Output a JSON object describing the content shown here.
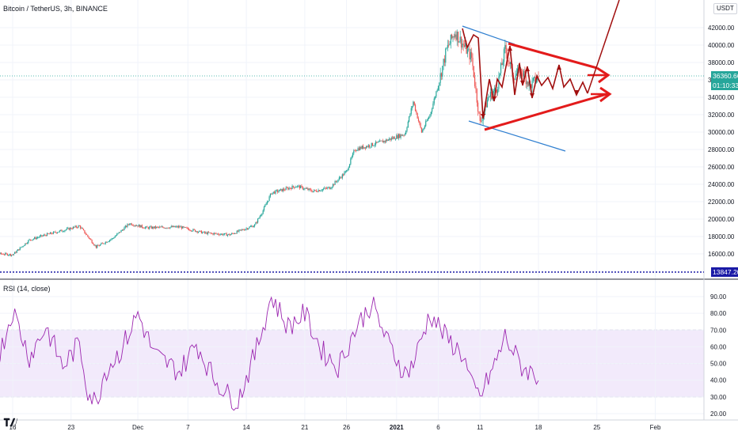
{
  "symbol_title": "Bitcoin / TetherUS, 3h, BINANCE",
  "currency": "USDT",
  "last_price": "36360.66",
  "countdown": "01:10:33",
  "hline_price": "13847.20",
  "rsi_title": "RSI (14, close)",
  "price_axis_labels": [
    "42000.00",
    "40000.00",
    "38000.00",
    "36000.00",
    "34000.00",
    "32000.00",
    "30000.00",
    "28000.00",
    "26000.00",
    "24000.00",
    "22000.00",
    "20000.00",
    "18000.00",
    "16000.00"
  ],
  "price_axis_top": "4",
  "rsi_axis_labels": [
    "90.00",
    "80.00",
    "70.00",
    "60.00",
    "50.00",
    "40.00",
    "30.00",
    "20.00"
  ],
  "time_axis_labels": [
    "16",
    "23",
    "Dec",
    "7",
    "14",
    "21",
    "26",
    "2021",
    "6",
    "11",
    "18",
    "25",
    "Feb"
  ],
  "colors": {
    "up": "#26a69a",
    "down": "#ef5350",
    "rsi_line": "#9c27b0",
    "rsi_band": "#e8d9f7",
    "drawing_red": "#e31b1b",
    "drawing_darkred": "#a10f0f",
    "trendline_blue": "#2f7fd0",
    "hline": "#1a1aa6"
  },
  "chart_data": {
    "type": "candlestick",
    "title": "Bitcoin / TetherUS, 3h, BINANCE",
    "ylim": [
      15000,
      43600
    ],
    "y_ticks": [
      16000,
      18000,
      20000,
      22000,
      24000,
      26000,
      28000,
      30000,
      32000,
      34000,
      36000,
      38000,
      40000,
      42000
    ],
    "x_ticks": [
      "16",
      "23",
      "Dec",
      "7",
      "14",
      "21",
      "26",
      "2021",
      "6",
      "11",
      "18",
      "25",
      "Feb"
    ],
    "price_path": [
      [
        "Nov 12",
        16200
      ],
      [
        "Nov 16",
        15900
      ],
      [
        "Nov 18",
        17600
      ],
      [
        "Nov 20",
        18200
      ],
      [
        "Nov 24",
        19200
      ],
      [
        "Nov 26",
        16800
      ],
      [
        "Nov 28",
        17800
      ],
      [
        "Nov 30",
        19500
      ],
      [
        "Dec 2",
        19000
      ],
      [
        "Dec 6",
        19100
      ],
      [
        "Dec 9",
        18400
      ],
      [
        "Dec 12",
        18200
      ],
      [
        "Dec 15",
        19300
      ],
      [
        "Dec 16",
        21000
      ],
      [
        "Dec 17",
        23000
      ],
      [
        "Dec 20",
        23800
      ],
      [
        "Dec 22",
        23200
      ],
      [
        "Dec 24",
        23600
      ],
      [
        "Dec 26",
        25500
      ],
      [
        "Dec 27",
        28000
      ],
      [
        "Dec 30",
        28800
      ],
      [
        "Jan 2",
        29800
      ],
      [
        "Jan 3",
        33500
      ],
      [
        "Jan 4",
        30000
      ],
      [
        "Jan 5",
        32000
      ],
      [
        "Jan 6",
        35500
      ],
      [
        "Jan 7",
        39500
      ],
      [
        "Jan 8",
        41500
      ],
      [
        "Jan 9",
        40000
      ],
      [
        "Jan 10",
        38500
      ],
      [
        "Jan 11",
        31000
      ],
      [
        "Jan 12",
        34000
      ],
      [
        "Jan 13",
        35000
      ],
      [
        "Jan 14",
        39500
      ],
      [
        "Jan 15",
        36500
      ],
      [
        "Jan 16",
        37000
      ],
      [
        "Jan 17",
        35300
      ],
      [
        "Jan 18",
        36360.66
      ]
    ],
    "last_price": 36360.66,
    "horizontal_line": 13847.2,
    "indicator": {
      "name": "RSI (14, close)",
      "ylim": [
        15,
        95
      ],
      "bands": [
        30,
        70
      ],
      "y_ticks": [
        20,
        30,
        40,
        50,
        60,
        70,
        80,
        90
      ]
    },
    "drawings": [
      {
        "type": "symmetrical-triangle",
        "description": "converging red lines with wave arrows"
      },
      {
        "type": "trendline",
        "count": 2
      },
      {
        "type": "breakout-arrows",
        "count": 2
      }
    ]
  }
}
